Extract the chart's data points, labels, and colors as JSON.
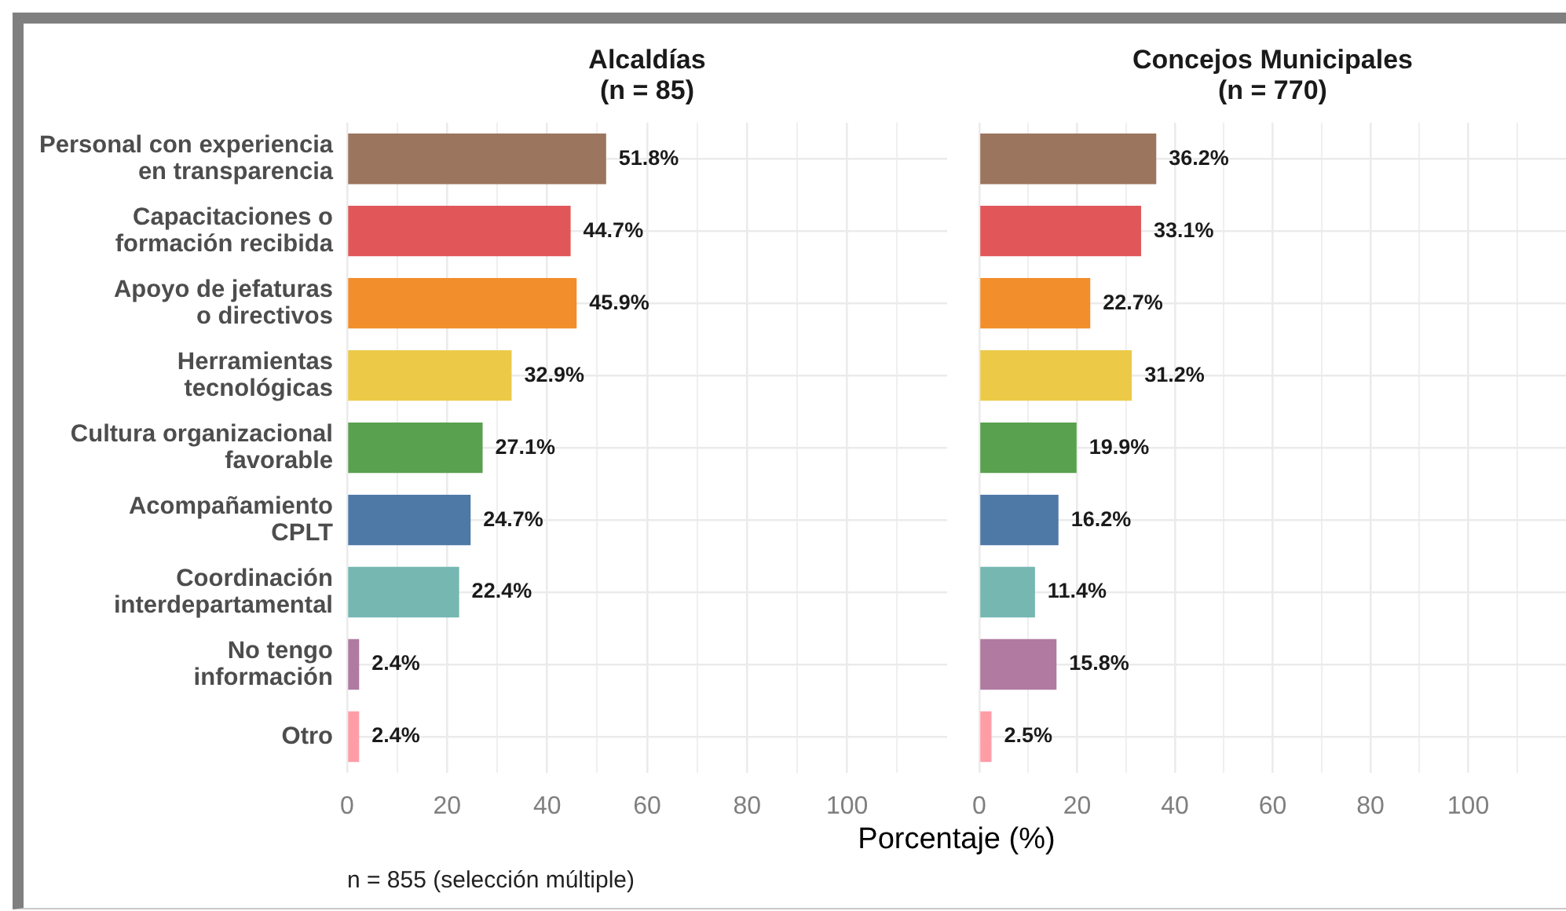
{
  "chart_data": [
    {
      "type": "bar",
      "orientation": "horizontal",
      "title": "Alcaldías\n(n = 85)",
      "xlabel": "Porcentaje (%)",
      "annotations": [
        "n = 855 (selección múltiple)"
      ],
      "categories": [
        "Personal con experiencia\nen transparencia",
        "Capacitaciones o\nformación recibida",
        "Apoyo de jefaturas\no directivos",
        "Herramientas\ntecnológicas",
        "Cultura organizacional\nfavorable",
        "Acompañamiento\nCPLT",
        "Coordinación\ninterdepartamental",
        "No tengo\ninformación",
        "Otro"
      ],
      "values": [
        51.8,
        44.7,
        45.9,
        32.9,
        27.1,
        24.7,
        22.4,
        2.4,
        2.4
      ],
      "value_labels": [
        "51.8%",
        "44.7%",
        "45.9%",
        "32.9%",
        "27.1%",
        "24.7%",
        "22.4%",
        "2.4%",
        "2.4%"
      ],
      "colors": [
        "#9c755f",
        "#e15759",
        "#f28e2b",
        "#edc948",
        "#59a14f",
        "#4e79a7",
        "#76b7b2",
        "#b07aa1",
        "#ff9da7"
      ],
      "xlim": [
        0,
        120
      ],
      "xticks": [
        0,
        {
          "value": 10,
          "label": null
        },
        20,
        {
          "value": 30,
          "label": null
        },
        40,
        {
          "value": 50,
          "label": null
        },
        60,
        {
          "value": 70,
          "label": null
        },
        80,
        {
          "value": 90,
          "label": null
        },
        100,
        {
          "value": 110,
          "label": null
        }
      ],
      "grid": true
    },
    {
      "type": "bar",
      "orientation": "horizontal",
      "title": "Concejos Municipales\n(n = 770)",
      "categories": [
        null,
        null,
        null,
        null,
        null,
        null,
        null,
        null,
        null
      ],
      "values": [
        36.2,
        33.1,
        22.7,
        31.2,
        19.9,
        16.2,
        11.4,
        15.8,
        2.5
      ],
      "value_labels": [
        "36.2%",
        "33.1%",
        "22.7%",
        "31.2%",
        "19.9%",
        "16.2%",
        "11.4%",
        "15.8%",
        "2.5%"
      ],
      "colors": [
        "#9c755f",
        "#e15759",
        "#f28e2b",
        "#edc948",
        "#59a14f",
        "#4e79a7",
        "#76b7b2",
        "#b07aa1",
        "#ff9da7"
      ],
      "xlim": [
        0,
        120
      ],
      "xticks": [
        0,
        {
          "value": 10,
          "label": null
        },
        20,
        {
          "value": 30,
          "label": null
        },
        40,
        {
          "value": 50,
          "label": null
        },
        60,
        {
          "value": 70,
          "label": null
        },
        80,
        {
          "value": 90,
          "label": null
        },
        100,
        {
          "value": 110,
          "label": null
        }
      ],
      "grid": true,
      "tick_labels": "x"
    }
  ]
}
